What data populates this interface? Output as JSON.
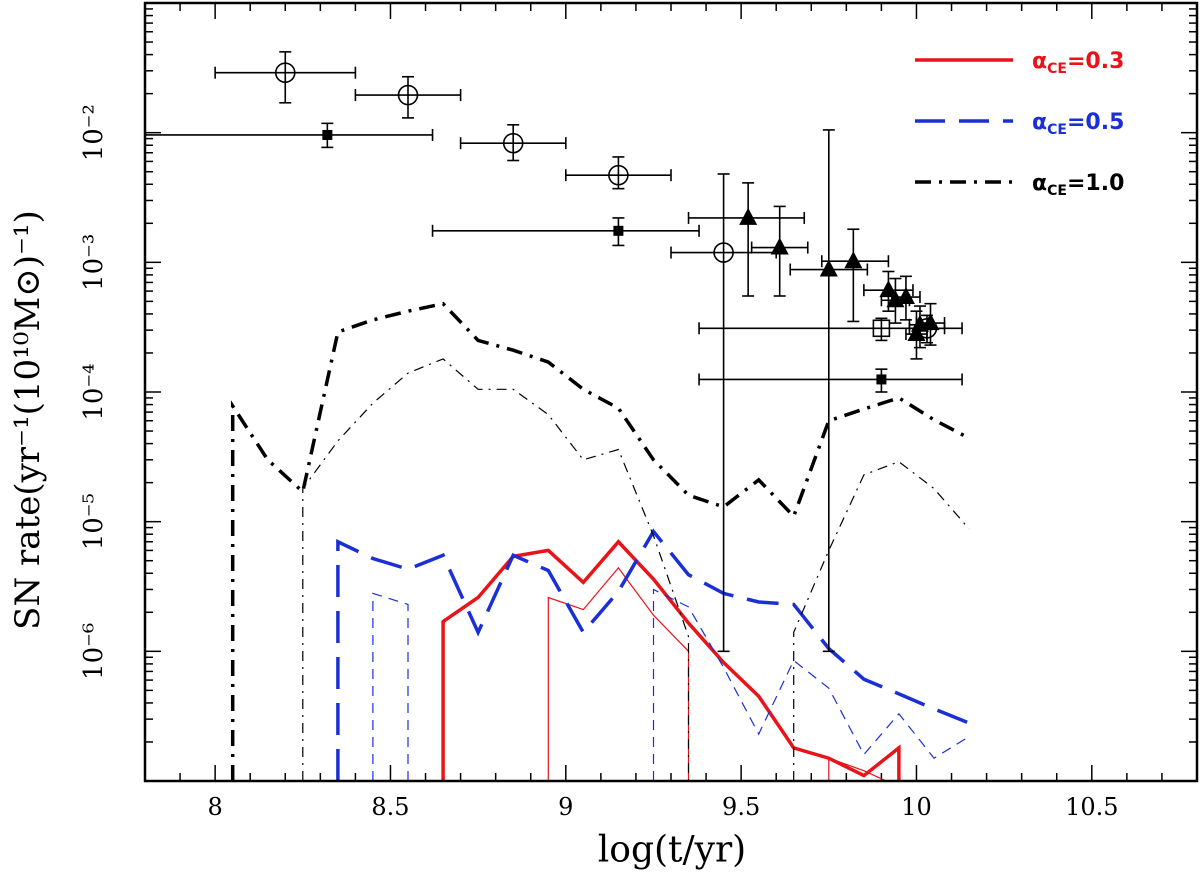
{
  "chart_data": {
    "type": "line",
    "title": "",
    "xlabel": "log(t/yr)",
    "ylabel": "SN rate(yr⁻¹(10¹⁰M⊙)⁻¹)",
    "xlim": [
      7.8,
      10.8
    ],
    "ylim_log10": [
      -7.0,
      -1.0
    ],
    "xticks": [
      {
        "value": 8.0,
        "label": "8"
      },
      {
        "value": 8.5,
        "label": "8.5"
      },
      {
        "value": 9.0,
        "label": "9"
      },
      {
        "value": 9.5,
        "label": "9.5"
      },
      {
        "value": 10.0,
        "label": "10"
      },
      {
        "value": 10.5,
        "label": "10.5"
      }
    ],
    "yticks": [
      {
        "exp": -2,
        "label": "10⁻²"
      },
      {
        "exp": -3,
        "label": "10⁻³"
      },
      {
        "exp": -4,
        "label": "10⁻⁴"
      },
      {
        "exp": -5,
        "label": "10⁻⁵"
      },
      {
        "exp": -6,
        "label": "10⁻⁶"
      }
    ],
    "series": [
      {
        "name": "alpha_CE=0.3",
        "legend": "αCE=0.3",
        "color": "#e8141a",
        "style": "solid",
        "width": 3.5,
        "x": [
          8.65,
          8.65,
          8.75,
          8.85,
          8.95,
          9.05,
          9.15,
          9.25,
          9.35,
          9.45,
          9.55,
          9.65,
          9.75,
          9.85,
          9.95,
          9.95
        ],
        "y": [
          -7.0,
          1.7e-06,
          2.6e-06,
          5.4e-06,
          6e-06,
          3.4e-06,
          7e-06,
          3.6e-06,
          1.65e-06,
          8.2e-07,
          4.5e-07,
          1.8e-07,
          1.5e-07,
          1.1e-07,
          1.8e-07,
          -7.0
        ]
      },
      {
        "name": "alpha_CE=0.3 (thin)",
        "legend": "",
        "color": "#e8141a",
        "style": "solid",
        "width": 1.2,
        "x": [
          8.95,
          8.95,
          9.05,
          9.15,
          9.25,
          9.35,
          9.35
        ],
        "y": [
          -7.0,
          2.6e-06,
          2.1e-06,
          4.4e-06,
          1.9e-06,
          1e-06,
          -7.0
        ]
      },
      {
        "name": "alpha_CE=0.3 (thin, late)",
        "legend": "",
        "color": "#e8141a",
        "style": "solid",
        "width": 1.2,
        "x": [
          9.75,
          9.75,
          9.85,
          9.95
        ],
        "y": [
          -7.0,
          1.5e-07,
          1.2e-07,
          9e-08
        ]
      },
      {
        "name": "alpha_CE=0.5",
        "legend": "αCE=0.5",
        "color": "#1a2fd6",
        "style": "longdash",
        "width": 3.5,
        "x": [
          8.35,
          8.35,
          8.45,
          8.55,
          8.65,
          8.75,
          8.85,
          8.95,
          9.05,
          9.15,
          9.25,
          9.35,
          9.45,
          9.55,
          9.65,
          9.75,
          9.85,
          9.95,
          10.05,
          10.15
        ],
        "y": [
          -7.0,
          7e-06,
          5.2e-06,
          4.3e-06,
          5.5e-06,
          1.4e-06,
          5.5e-06,
          4.2e-06,
          1.4e-06,
          2.9e-06,
          8.4e-06,
          3.9e-06,
          2.8e-06,
          2.4e-06,
          2.3e-06,
          1.05e-06,
          6.1e-07,
          4.7e-07,
          3.6e-07,
          2.8e-07
        ]
      },
      {
        "name": "alpha_CE=0.5 (thin)",
        "legend": "",
        "color": "#1a2fd6",
        "style": "dash",
        "width": 1.2,
        "x": [
          8.45,
          8.45,
          8.55,
          8.55
        ],
        "y": [
          -7.0,
          2.8e-06,
          2.3e-06,
          -7.0
        ]
      },
      {
        "name": "alpha_CE=0.5 (thin, mid)",
        "legend": "",
        "color": "#1a2fd6",
        "style": "dash",
        "width": 1.2,
        "x": [
          9.25,
          9.25,
          9.35,
          9.45,
          9.55,
          9.65,
          9.75,
          9.85,
          9.95,
          10.05,
          10.15
        ],
        "y": [
          -7.0,
          3e-06,
          2.2e-06,
          7.5e-07,
          2.3e-07,
          8.5e-07,
          5.2e-07,
          1.6e-07,
          3.3e-07,
          1.5e-07,
          2.2e-07
        ]
      },
      {
        "name": "alpha_CE=1.0",
        "legend": "αCE=1.0",
        "color": "#000000",
        "style": "dashdot",
        "width": 3.5,
        "x": [
          8.05,
          8.05,
          8.15,
          8.25,
          8.35,
          8.45,
          8.55,
          8.65,
          8.75,
          8.85,
          8.95,
          9.05,
          9.15,
          9.25,
          9.35,
          9.45,
          9.55,
          9.65,
          9.75,
          9.85,
          9.95,
          10.05,
          10.15
        ],
        "y": [
          -7.0,
          7.8e-05,
          3e-05,
          1.7e-05,
          0.00029,
          0.00036,
          0.00042,
          0.00048,
          0.00025,
          0.00021,
          0.00017,
          0.000105,
          7.5e-05,
          3e-05,
          1.6e-05,
          1.3e-05,
          2.1e-05,
          1.1e-05,
          6e-05,
          7.4e-05,
          9e-05,
          6.1e-05,
          4.4e-05
        ]
      },
      {
        "name": "alpha_CE=1.0 (thin)",
        "legend": "",
        "color": "#000000",
        "style": "dashdot",
        "width": 1.2,
        "x": [
          8.25,
          8.25,
          8.35,
          8.45,
          8.55,
          8.65,
          8.75,
          8.85,
          8.95,
          9.05,
          9.15,
          9.25,
          9.35,
          9.35
        ],
        "y": [
          -7.0,
          1.8e-05,
          4.2e-05,
          8.2e-05,
          0.00014,
          0.00018,
          0.000105,
          0.000105,
          6.7e-05,
          3e-05,
          3.6e-05,
          7.8e-06,
          1.3e-06,
          -7.0
        ]
      },
      {
        "name": "alpha_CE=1.0 (thin, late)",
        "legend": "",
        "color": "#000000",
        "style": "dashdot",
        "width": 1.2,
        "x": [
          9.65,
          9.65,
          9.75,
          9.85,
          9.95,
          10.05,
          10.15
        ],
        "y": [
          -7.0,
          1.4e-06,
          6e-06,
          2.3e-05,
          2.9e-05,
          1.8e-05,
          8.8e-06
        ]
      }
    ],
    "observations": [
      {
        "marker": "open-circle",
        "x": 8.2,
        "y": 0.029,
        "xerr": [
          8.0,
          8.4
        ],
        "yerr": [
          0.017,
          0.042
        ]
      },
      {
        "marker": "open-circle",
        "x": 8.55,
        "y": 0.0195,
        "xerr": [
          8.4,
          8.7
        ],
        "yerr": [
          0.013,
          0.027
        ]
      },
      {
        "marker": "open-circle",
        "x": 8.85,
        "y": 0.0083,
        "xerr": [
          8.7,
          9.0
        ],
        "yerr": [
          0.0061,
          0.0115
        ]
      },
      {
        "marker": "open-circle",
        "x": 9.15,
        "y": 0.0047,
        "xerr": [
          9.0,
          9.3
        ],
        "yerr": [
          0.0037,
          0.0065
        ]
      },
      {
        "marker": "open-circle",
        "x": 9.45,
        "y": 0.00119,
        "xerr": [
          9.3,
          9.6
        ],
        "yerr": [
          1e-06,
          0.0048
        ]
      },
      {
        "marker": "open-circle",
        "x": 10.03,
        "y": 0.00031,
        "xerr": [
          9.98,
          10.08
        ],
        "yerr": [
          0.00024,
          0.00039
        ]
      },
      {
        "marker": "filled-square",
        "x": 8.32,
        "y": 0.0096,
        "xerr": [
          7.8,
          8.62
        ],
        "yerr": [
          0.0077,
          0.0118
        ]
      },
      {
        "marker": "filled-square",
        "x": 9.15,
        "y": 0.00175,
        "xerr": [
          8.62,
          9.38
        ],
        "yerr": [
          0.00135,
          0.0022
        ]
      },
      {
        "marker": "filled-square",
        "x": 9.9,
        "y": 0.000125,
        "xerr": [
          9.38,
          10.13
        ],
        "yerr": [
          0.0001,
          0.00015
        ]
      },
      {
        "marker": "open-square",
        "x": 9.9,
        "y": 0.00031,
        "xerr": [
          9.38,
          10.13
        ],
        "yerr": [
          0.00025,
          0.00037
        ]
      },
      {
        "marker": "filled-triangle",
        "x": 9.52,
        "y": 0.0022,
        "xerr": [
          9.35,
          9.68
        ],
        "yerr": [
          0.00055,
          0.0041
        ]
      },
      {
        "marker": "filled-triangle",
        "x": 9.61,
        "y": 0.0013,
        "xerr": [
          9.53,
          9.69
        ],
        "yerr": [
          0.00055,
          0.0027
        ]
      },
      {
        "marker": "filled-triangle",
        "x": 9.75,
        "y": 0.00088,
        "xerr": [
          9.64,
          9.86
        ],
        "yerr": [
          1e-06,
          0.0105
        ]
      },
      {
        "marker": "filled-triangle",
        "x": 9.82,
        "y": 0.00102,
        "xerr": [
          9.73,
          9.92
        ],
        "yerr": [
          0.00035,
          0.0018
        ]
      },
      {
        "marker": "filled-triangle",
        "x": 9.92,
        "y": 0.00061,
        "xerr": [
          9.85,
          9.99
        ],
        "yerr": [
          0.00042,
          0.00085
        ]
      },
      {
        "marker": "filled-triangle",
        "x": 9.94,
        "y": 0.00051,
        "xerr": [
          9.9,
          9.98
        ],
        "yerr": [
          0.00034,
          0.00075
        ]
      },
      {
        "marker": "filled-triangle",
        "x": 9.97,
        "y": 0.00054,
        "xerr": [
          9.93,
          10.01
        ],
        "yerr": [
          0.00036,
          0.00078
        ]
      },
      {
        "marker": "filled-triangle",
        "x": 10.0,
        "y": 0.00028,
        "xerr": [
          9.97,
          10.03
        ],
        "yerr": [
          0.00018,
          0.00042
        ]
      },
      {
        "marker": "filled-triangle",
        "x": 10.01,
        "y": 0.00033,
        "xerr": [
          9.98,
          10.04
        ],
        "yerr": [
          0.00022,
          0.00046
        ]
      },
      {
        "marker": "filled-triangle",
        "x": 10.04,
        "y": 0.00034,
        "xerr": [
          10.0,
          10.08
        ],
        "yerr": [
          0.00023,
          0.00048
        ]
      }
    ],
    "legend": {
      "placement": "top-right",
      "entries": [
        {
          "symbol": "α",
          "sub": "CE",
          "text": "=0.3",
          "color": "#e8141a",
          "style": "solid"
        },
        {
          "symbol": "α",
          "sub": "CE",
          "text": "=0.5",
          "color": "#1a2fd6",
          "style": "longdash"
        },
        {
          "symbol": "α",
          "sub": "CE",
          "text": "=1.0",
          "color": "#000000",
          "style": "dashdot"
        }
      ]
    }
  }
}
